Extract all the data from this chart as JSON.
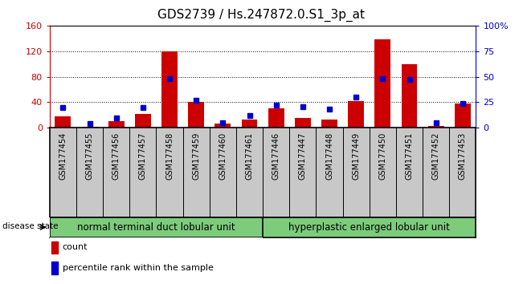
{
  "title": "GDS2739 / Hs.247872.0.S1_3p_at",
  "samples": [
    "GSM177454",
    "GSM177455",
    "GSM177456",
    "GSM177457",
    "GSM177458",
    "GSM177459",
    "GSM177460",
    "GSM177461",
    "GSM177446",
    "GSM177447",
    "GSM177448",
    "GSM177449",
    "GSM177450",
    "GSM177451",
    "GSM177452",
    "GSM177453"
  ],
  "counts": [
    18,
    2,
    10,
    22,
    120,
    40,
    7,
    13,
    30,
    15,
    13,
    42,
    138,
    100,
    3,
    38
  ],
  "percentiles": [
    20,
    4,
    10,
    20,
    48,
    27,
    5,
    12,
    22,
    21,
    18,
    30,
    48,
    47,
    5,
    24
  ],
  "group1_label": "normal terminal duct lobular unit",
  "group2_label": "hyperplastic enlarged lobular unit",
  "group1_count": 8,
  "group2_count": 8,
  "disease_state_label": "disease state",
  "legend_count": "count",
  "legend_percentile": "percentile rank within the sample",
  "ylim_left": [
    0,
    160
  ],
  "ylim_right": [
    0,
    100
  ],
  "yticks_left": [
    0,
    40,
    80,
    120,
    160
  ],
  "yticks_right": [
    0,
    25,
    50,
    75,
    100
  ],
  "bar_color": "#cc0000",
  "percentile_color": "#0000cc",
  "tickbox_color": "#c8c8c8",
  "group_color": "#7ccc7c",
  "title_fontsize": 11
}
